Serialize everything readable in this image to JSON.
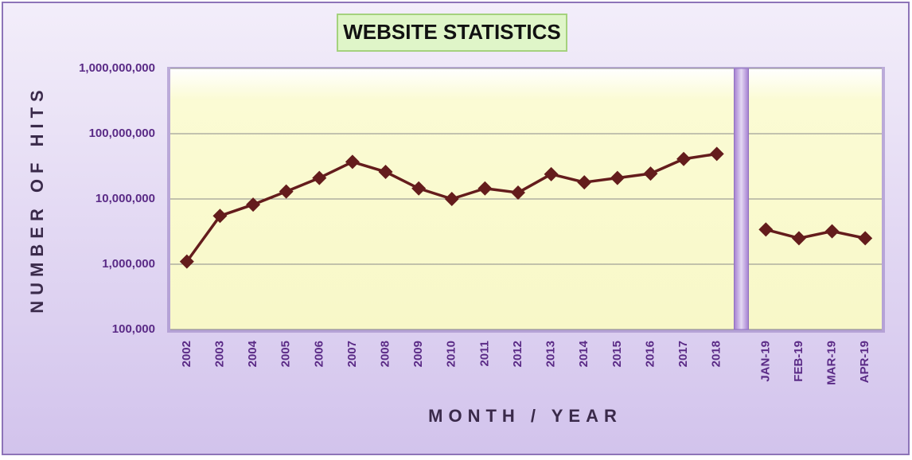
{
  "chart_data": {
    "type": "line",
    "title": "WEBSITE STATISTICS",
    "x_label": "MONTH / YEAR",
    "y_label": "NUMBER OF HITS",
    "categories": [
      "2002",
      "2003",
      "2004",
      "2005",
      "2006",
      "2007",
      "2008",
      "2009",
      "2010",
      "2011",
      "2012",
      "2013",
      "2014",
      "2015",
      "2016",
      "2017",
      "2018",
      null,
      "JAN-19",
      "FEB-19",
      "MAR-19",
      "APR-19"
    ],
    "series": [
      {
        "name": "Hits",
        "color": "#641c1c",
        "values": [
          1100000,
          5500000,
          8200000,
          13000000,
          21000000,
          37000000,
          26000000,
          14500000,
          10000000,
          14500000,
          12500000,
          24000000,
          18000000,
          21000000,
          24500000,
          41000000,
          49000000,
          null,
          3400000,
          2500000,
          3200000,
          2500000
        ]
      }
    ],
    "log_scale": true,
    "grid": true,
    "ylim": [
      100000,
      1000000000
    ],
    "yticks": [
      {
        "value": 100000,
        "label": "100,000"
      },
      {
        "value": 1000000,
        "label": "1,000,000"
      },
      {
        "value": 10000000,
        "label": "10,000,000"
      },
      {
        "value": 100000000,
        "label": "100,000,000"
      },
      {
        "value": 1000000000,
        "label": "1,000,000,000"
      }
    ]
  }
}
